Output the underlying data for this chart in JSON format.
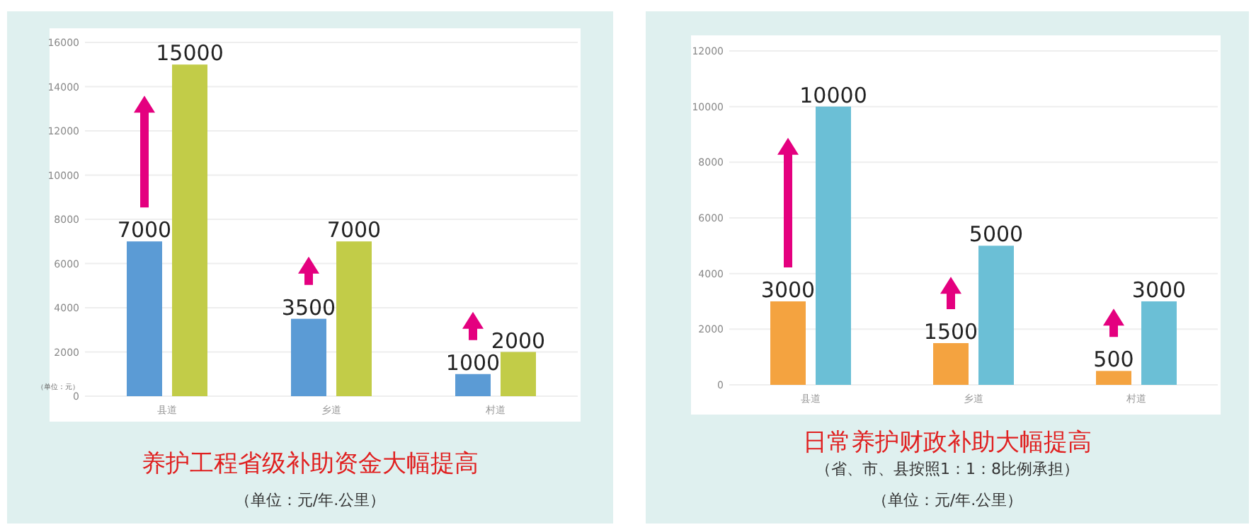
{
  "chart_data": [
    {
      "type": "bar",
      "title": "养护工程省级补助资金大幅提高",
      "subtitle": "（单位：元/年.公里）",
      "ylabel": "（单位：元）",
      "categories": [
        "县道",
        "乡道",
        "村道"
      ],
      "series": [
        {
          "color": "#5b9bd5",
          "values": [
            7000,
            3500,
            1000
          ]
        },
        {
          "color": "#c2cc48",
          "values": [
            15000,
            7000,
            2000
          ]
        }
      ],
      "ylim": [
        0,
        16000
      ],
      "yticks": [
        0,
        2000,
        4000,
        6000,
        8000,
        10000,
        12000,
        14000,
        16000
      ],
      "grid": "y",
      "data_labels": true
    },
    {
      "type": "bar",
      "title": "日常养护财政补助大幅提高",
      "subtitle": "（省、市、县按照1：1：8比例承担）",
      "annotations": [
        "（单位：元/年.公里）"
      ],
      "categories": [
        "县道",
        "乡道",
        "村道"
      ],
      "series": [
        {
          "color": "#f4a340",
          "values": [
            3000,
            1500,
            500
          ]
        },
        {
          "color": "#6bbfd6",
          "values": [
            10000,
            5000,
            3000
          ]
        }
      ],
      "ylim": [
        0,
        12000
      ],
      "yticks": [
        0,
        2000,
        4000,
        6000,
        8000,
        10000,
        12000
      ],
      "grid": "y",
      "data_labels": true
    }
  ]
}
